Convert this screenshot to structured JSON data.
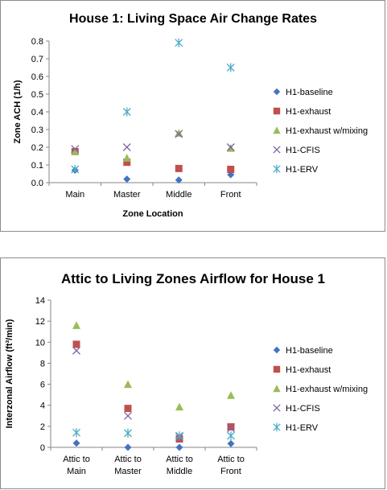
{
  "chart_data": [
    {
      "type": "scatter",
      "title": "House 1: Living Space Air Change Rates",
      "xlabel": "Zone Location",
      "ylabel": "Zone ACH (1/h)",
      "categories": [
        "Main",
        "Master",
        "Middle",
        "Front"
      ],
      "ylim": [
        0,
        0.8
      ],
      "yticks": [
        "0.0",
        "0.1",
        "0.2",
        "0.3",
        "0.4",
        "0.5",
        "0.6",
        "0.7",
        "0.8"
      ],
      "grid": false,
      "legend_position": "right",
      "series": [
        {
          "name": "H1-baseline",
          "marker": "diamond",
          "color": "#4472c4",
          "values": [
            0.07,
            0.02,
            0.015,
            0.045
          ]
        },
        {
          "name": "H1-exhaust",
          "marker": "square",
          "color": "#c0504d",
          "values": [
            0.175,
            0.115,
            0.08,
            0.075
          ]
        },
        {
          "name": "H1-exhaust w/mixing",
          "marker": "triangle",
          "color": "#9bbb59",
          "values": [
            0.175,
            0.14,
            0.28,
            0.195
          ]
        },
        {
          "name": "H1-CFIS",
          "marker": "x",
          "color": "#8064a2",
          "values": [
            0.19,
            0.2,
            0.275,
            0.2
          ]
        },
        {
          "name": "H1-ERV",
          "marker": "star",
          "color": "#4bacc6",
          "values": [
            0.075,
            0.4,
            0.79,
            0.65
          ]
        }
      ]
    },
    {
      "type": "scatter",
      "title": "Attic to Living Zones Airflow for House  1",
      "xlabel": "",
      "ylabel": "Interzonal Airflow  (ft³/min)",
      "categories": [
        [
          "Attic to",
          "Main"
        ],
        [
          "Attic to",
          "Master"
        ],
        [
          "Attic to",
          "Middle"
        ],
        [
          "Attic to",
          "Front"
        ]
      ],
      "ylim": [
        0,
        14
      ],
      "yticks": [
        "0",
        "2",
        "4",
        "6",
        "8",
        "10",
        "12",
        "14"
      ],
      "grid": false,
      "legend_position": "right",
      "series": [
        {
          "name": "H1-baseline",
          "marker": "diamond",
          "color": "#4472c4",
          "values": [
            0.4,
            0.0,
            0.0,
            0.35
          ]
        },
        {
          "name": "H1-exhaust",
          "marker": "square",
          "color": "#c0504d",
          "values": [
            9.8,
            3.7,
            0.8,
            1.95
          ]
        },
        {
          "name": "H1-exhaust w/mixing",
          "marker": "triangle",
          "color": "#9bbb59",
          "values": [
            11.6,
            6.0,
            3.85,
            4.95
          ]
        },
        {
          "name": "H1-CFIS",
          "marker": "x",
          "color": "#8064a2",
          "values": [
            9.2,
            3.0,
            1.0,
            1.8
          ]
        },
        {
          "name": "H1-ERV",
          "marker": "star",
          "color": "#4bacc6",
          "values": [
            1.4,
            1.35,
            1.1,
            1.1
          ]
        }
      ]
    }
  ]
}
